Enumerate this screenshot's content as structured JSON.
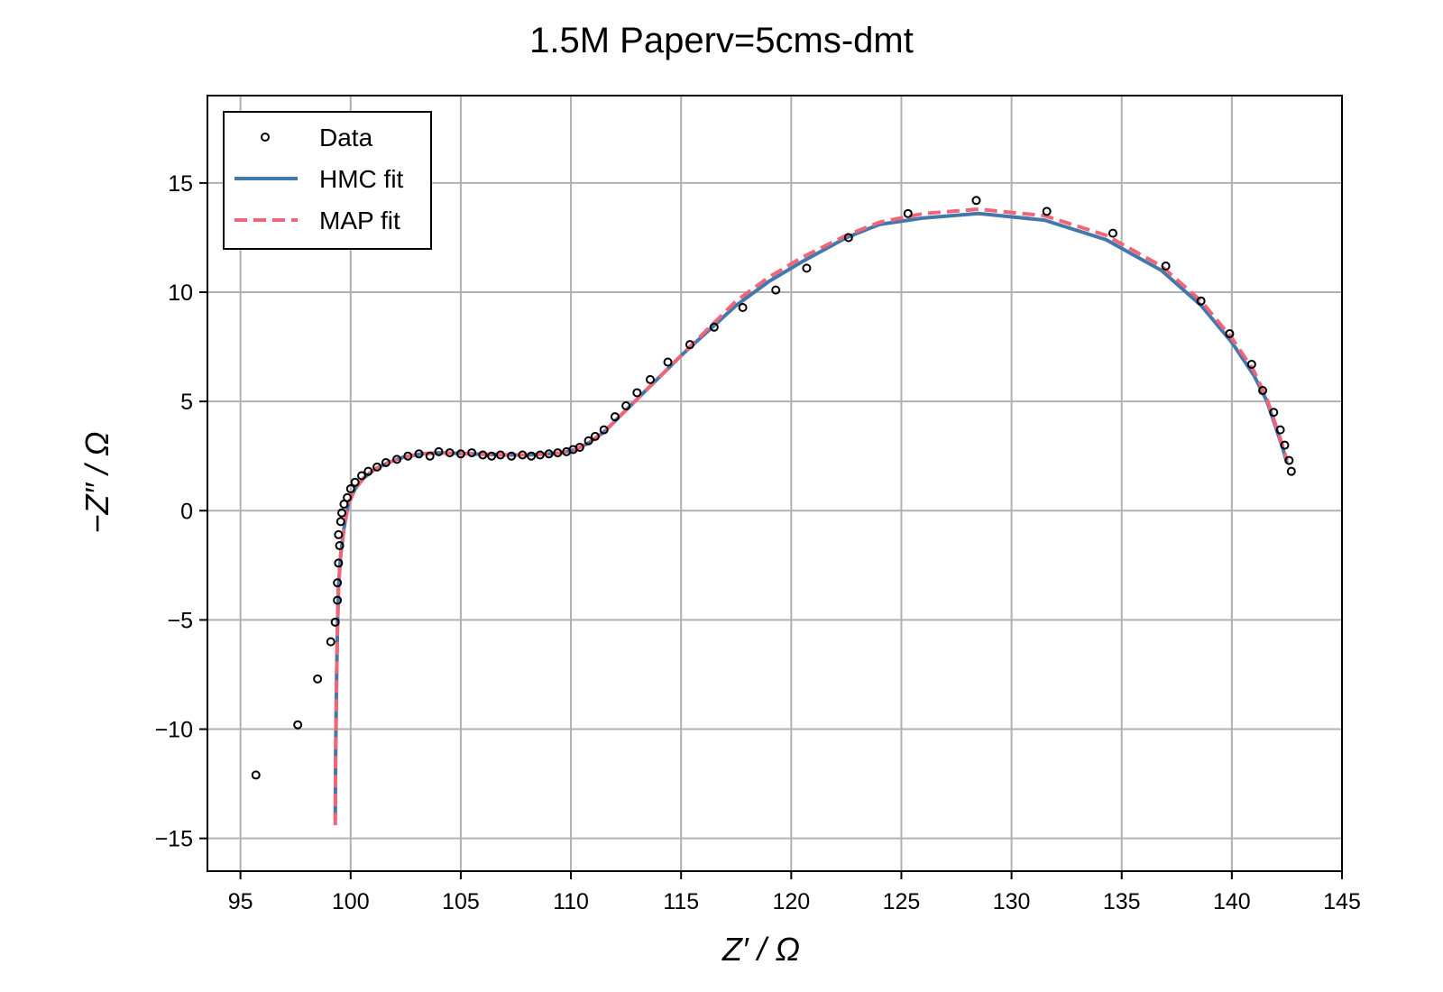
{
  "chart_data": {
    "type": "scatter",
    "title": "1.5M Paperv=5cms-dmt",
    "xlabel": "Z′ / Ω",
    "ylabel": "−Z″ / Ω",
    "xlim": [
      93.5,
      145
    ],
    "ylim": [
      -16.5,
      19
    ],
    "xticks": [
      95,
      100,
      105,
      110,
      115,
      120,
      125,
      130,
      135,
      140,
      145
    ],
    "yticks": [
      -15,
      -10,
      -5,
      0,
      5,
      10,
      15
    ],
    "xtick_labels": [
      "95",
      "100",
      "105",
      "110",
      "115",
      "120",
      "125",
      "130",
      "135",
      "140",
      "145"
    ],
    "ytick_labels": [
      "−15",
      "−10",
      "−5",
      "0",
      "5",
      "10",
      "15"
    ],
    "grid": true,
    "legend_position": "top-left",
    "series": [
      {
        "name": "Data",
        "kind": "scatter",
        "color": "#000000",
        "x": [
          95.7,
          97.6,
          98.5,
          99.1,
          99.3,
          99.4,
          99.4,
          99.45,
          99.5,
          99.45,
          99.55,
          99.6,
          99.7,
          99.85,
          100.0,
          100.2,
          100.5,
          100.8,
          101.2,
          101.6,
          102.1,
          102.6,
          103.1,
          103.6,
          104.0,
          104.5,
          105.0,
          105.5,
          106.0,
          106.4,
          106.8,
          107.3,
          107.8,
          108.2,
          108.6,
          109.0,
          109.4,
          109.8,
          110.1,
          110.4,
          110.8,
          111.1,
          111.5,
          112.0,
          112.5,
          113.0,
          113.6,
          114.4,
          115.4,
          116.5,
          117.8,
          119.3,
          120.7,
          122.6,
          125.3,
          128.4,
          131.6,
          134.6,
          137.0,
          138.6,
          139.9,
          140.9,
          141.4,
          141.9,
          142.2,
          142.4,
          142.6,
          142.7
        ],
        "y": [
          -12.1,
          -9.8,
          -7.7,
          -6.0,
          -5.1,
          -4.1,
          -3.3,
          -2.4,
          -1.6,
          -1.1,
          -0.5,
          -0.1,
          0.3,
          0.6,
          1.0,
          1.3,
          1.6,
          1.8,
          2.0,
          2.2,
          2.35,
          2.5,
          2.6,
          2.5,
          2.7,
          2.65,
          2.6,
          2.65,
          2.55,
          2.5,
          2.55,
          2.5,
          2.55,
          2.5,
          2.55,
          2.6,
          2.65,
          2.7,
          2.8,
          2.9,
          3.2,
          3.4,
          3.7,
          4.3,
          4.8,
          5.4,
          6.0,
          6.8,
          7.6,
          8.4,
          9.3,
          10.1,
          11.1,
          12.5,
          13.6,
          14.2,
          13.7,
          12.7,
          11.2,
          9.6,
          8.1,
          6.7,
          5.5,
          4.5,
          3.7,
          3.0,
          2.3,
          1.8
        ]
      },
      {
        "name": "HMC fit",
        "kind": "line",
        "color": "#4477aa",
        "x": [
          99.3,
          99.32,
          99.36,
          99.4,
          99.45,
          99.55,
          99.7,
          99.9,
          100.2,
          100.6,
          101.1,
          101.7,
          102.4,
          103.2,
          104.0,
          105.0,
          106.0,
          107.0,
          108.0,
          109.0,
          109.6,
          110.2,
          110.8,
          111.5,
          112.2,
          113.0,
          114.0,
          115.0,
          116.2,
          117.5,
          119.0,
          120.5,
          122.5,
          124.0,
          126.0,
          128.5,
          131.5,
          134.3,
          136.8,
          138.6,
          140.0,
          141.0,
          141.6,
          142.0,
          142.3,
          142.5
        ],
        "y": [
          -14.2,
          -11.0,
          -8.0,
          -5.5,
          -3.5,
          -2.0,
          -0.8,
          0.3,
          1.0,
          1.5,
          1.9,
          2.2,
          2.45,
          2.6,
          2.65,
          2.62,
          2.58,
          2.55,
          2.55,
          2.6,
          2.65,
          2.8,
          3.1,
          3.6,
          4.3,
          5.1,
          6.1,
          7.1,
          8.2,
          9.4,
          10.5,
          11.4,
          12.5,
          13.1,
          13.4,
          13.6,
          13.3,
          12.4,
          11.0,
          9.4,
          7.7,
          6.2,
          5.0,
          3.8,
          2.9,
          2.2
        ]
      },
      {
        "name": "MAP fit",
        "kind": "dashed",
        "color": "#ee6677",
        "x": [
          99.3,
          99.32,
          99.36,
          99.4,
          99.45,
          99.55,
          99.7,
          99.9,
          100.2,
          100.6,
          101.1,
          101.7,
          102.4,
          103.2,
          104.0,
          105.0,
          106.0,
          107.0,
          108.0,
          109.0,
          109.6,
          110.2,
          110.8,
          111.5,
          112.2,
          113.0,
          114.0,
          115.0,
          116.2,
          117.5,
          119.0,
          120.5,
          122.5,
          124.0,
          126.0,
          128.5,
          131.5,
          134.3,
          136.8,
          138.6,
          140.0,
          141.0,
          141.6,
          142.0,
          142.3,
          142.5
        ],
        "y": [
          -14.4,
          -11.0,
          -8.0,
          -5.5,
          -3.5,
          -2.0,
          -0.8,
          0.3,
          1.0,
          1.5,
          1.9,
          2.2,
          2.45,
          2.6,
          2.65,
          2.62,
          2.58,
          2.55,
          2.55,
          2.6,
          2.65,
          2.8,
          3.1,
          3.6,
          4.3,
          5.1,
          6.1,
          7.1,
          8.3,
          9.6,
          10.7,
          11.6,
          12.6,
          13.2,
          13.6,
          13.8,
          13.5,
          12.6,
          11.2,
          9.6,
          7.9,
          6.4,
          5.1,
          3.9,
          3.0,
          2.3
        ]
      }
    ]
  }
}
